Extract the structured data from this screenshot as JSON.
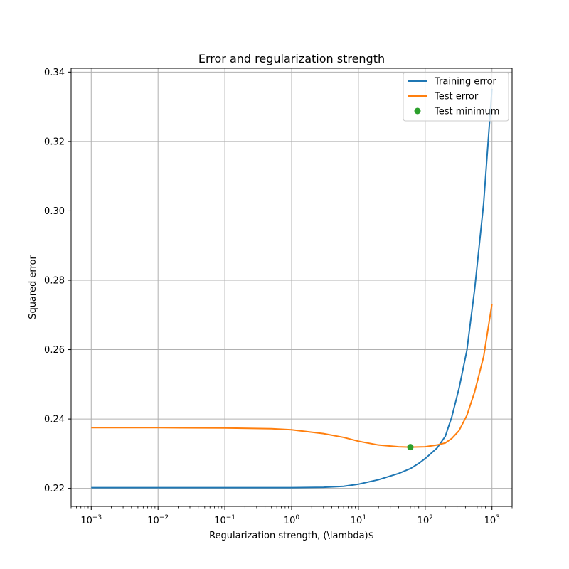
{
  "chart_data": {
    "type": "line",
    "title": "Error and regularization strength",
    "xlabel": "Regularization strength, (\\lambda)$",
    "ylabel": "Squared error",
    "xscale": "log",
    "xlim": [
      0.0005,
      2000
    ],
    "ylim": [
      0.2148,
      0.3411
    ],
    "xticks": [
      {
        "value": 0.001,
        "base": "10",
        "exp": "−3"
      },
      {
        "value": 0.01,
        "base": "10",
        "exp": "−2"
      },
      {
        "value": 0.1,
        "base": "10",
        "exp": "−1"
      },
      {
        "value": 1,
        "base": "10",
        "exp": "0"
      },
      {
        "value": 10,
        "base": "10",
        "exp": "1"
      },
      {
        "value": 100,
        "base": "10",
        "exp": "2"
      },
      {
        "value": 1000,
        "base": "10",
        "exp": "3"
      }
    ],
    "yticks": [
      {
        "value": 0.22,
        "label": "0.22"
      },
      {
        "value": 0.24,
        "label": "0.24"
      },
      {
        "value": 0.26,
        "label": "0.26"
      },
      {
        "value": 0.28,
        "label": "0.28"
      },
      {
        "value": 0.3,
        "label": "0.30"
      },
      {
        "value": 0.32,
        "label": "0.32"
      },
      {
        "value": 0.34,
        "label": "0.34"
      }
    ],
    "grid": true,
    "legend_position": "upper right",
    "series": [
      {
        "name": "Training error",
        "kind": "line",
        "color": "#1f77b4",
        "points": [
          [
            0.001,
            0.2202
          ],
          [
            0.01,
            0.2202
          ],
          [
            0.1,
            0.2202
          ],
          [
            1,
            0.2202
          ],
          [
            3,
            0.2203
          ],
          [
            6,
            0.2206
          ],
          [
            10,
            0.2212
          ],
          [
            20,
            0.2225
          ],
          [
            40,
            0.2243
          ],
          [
            60,
            0.2257
          ],
          [
            80,
            0.2272
          ],
          [
            100,
            0.2286
          ],
          [
            150,
            0.2316
          ],
          [
            200,
            0.235
          ],
          [
            250,
            0.2406
          ],
          [
            320,
            0.2487
          ],
          [
            420,
            0.2597
          ],
          [
            550,
            0.2774
          ],
          [
            750,
            0.3022
          ],
          [
            1000,
            0.3352
          ]
        ]
      },
      {
        "name": "Test error",
        "kind": "line",
        "color": "#ff7f0e",
        "points": [
          [
            0.001,
            0.2375
          ],
          [
            0.01,
            0.2375
          ],
          [
            0.1,
            0.2374
          ],
          [
            0.5,
            0.2372
          ],
          [
            1,
            0.2369
          ],
          [
            3,
            0.2358
          ],
          [
            6,
            0.2347
          ],
          [
            10,
            0.2336
          ],
          [
            20,
            0.2325
          ],
          [
            40,
            0.232
          ],
          [
            60,
            0.2319
          ],
          [
            100,
            0.232
          ],
          [
            150,
            0.2325
          ],
          [
            200,
            0.2331
          ],
          [
            250,
            0.2344
          ],
          [
            320,
            0.2366
          ],
          [
            420,
            0.241
          ],
          [
            550,
            0.2478
          ],
          [
            750,
            0.258
          ],
          [
            1000,
            0.2732
          ]
        ]
      },
      {
        "name": "Test minimum",
        "kind": "point",
        "color": "#2ca02c",
        "points": [
          [
            60,
            0.2319
          ]
        ]
      }
    ]
  }
}
